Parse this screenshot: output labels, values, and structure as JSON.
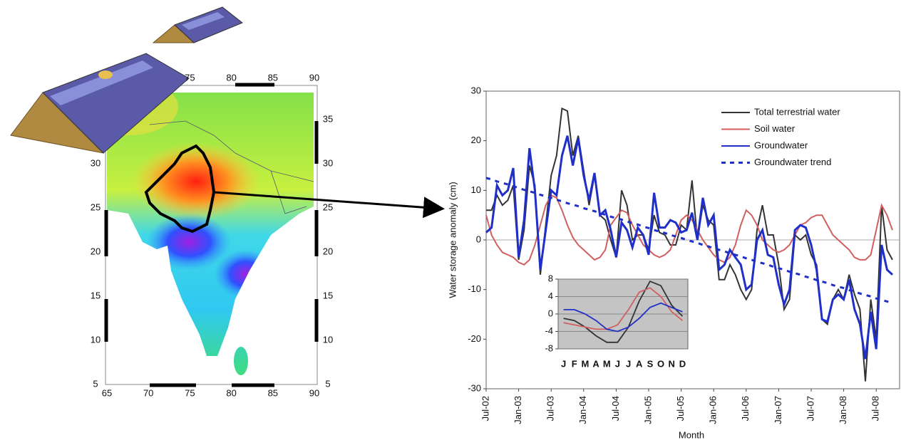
{
  "chart_data": [
    {
      "type": "line",
      "y_label": "Water storage anomaly (cm)",
      "x_label": "Month",
      "categories": [
        "Jul-02",
        null,
        null,
        null,
        null,
        null,
        "Jan-03",
        null,
        null,
        null,
        null,
        null,
        "Jul-03",
        null,
        null,
        null,
        null,
        null,
        "Jan-04",
        null,
        null,
        null,
        null,
        null,
        "Jul-04",
        null,
        null,
        null,
        null,
        null,
        "Jan-05",
        null,
        null,
        null,
        null,
        null,
        "Jul-05",
        null,
        null,
        null,
        null,
        null,
        "Jan-06",
        null,
        null,
        null,
        null,
        null,
        "Jul-06",
        null,
        null,
        null,
        null,
        null,
        "Jan-07",
        null,
        null,
        null,
        null,
        null,
        "Jul-07",
        null,
        null,
        null,
        null,
        null,
        "Jan-08",
        null,
        null,
        null,
        null,
        null,
        "Jul-08",
        null,
        null,
        null
      ],
      "ylim": [
        -30,
        30
      ],
      "yticks": [
        -30,
        -20,
        -10,
        0,
        10,
        20,
        30
      ],
      "legend": "top-right",
      "series": [
        {
          "name": "Total terrestrial water",
          "color": "#333333",
          "values": [
            6,
            6,
            9,
            7,
            8,
            11,
            -4,
            2,
            15,
            11,
            -7,
            3,
            13,
            17,
            26.5,
            26,
            17,
            21,
            14,
            7,
            13,
            5,
            4,
            0,
            -3.5,
            10,
            7,
            0,
            1,
            1,
            -2,
            5,
            1.5,
            1,
            -1,
            -1,
            3,
            2,
            12,
            0,
            7,
            4,
            3,
            -8,
            -8,
            -5,
            -7,
            -10,
            -12,
            -10,
            2,
            7,
            1,
            1,
            -5,
            -14,
            -12,
            1,
            0,
            1,
            -3,
            -5,
            -16,
            -17,
            -12,
            -10,
            -12,
            -7,
            -11,
            -14,
            -28.5,
            -12,
            -20,
            7,
            -2,
            -4
          ]
        },
        {
          "name": "Soil water",
          "color": "#d06060",
          "values": [
            5,
            1,
            -1,
            -2.5,
            -3,
            -3.5,
            -4.5,
            -5,
            -4,
            -1,
            3,
            7,
            9,
            8.5,
            6,
            3,
            0.5,
            -1,
            -2,
            -3,
            -4,
            -3.5,
            -2,
            3,
            4.5,
            6,
            5.5,
            3,
            1,
            -1,
            -2,
            -3,
            -3.5,
            -3,
            -2,
            1,
            4,
            5,
            4,
            2,
            0,
            -1.5,
            -3,
            -4,
            -4.5,
            -3.5,
            -1,
            3,
            6,
            5,
            3,
            0,
            -1,
            -2,
            -2.5,
            -2,
            -1,
            1,
            3,
            3.5,
            4.5,
            5,
            5,
            3,
            1,
            0,
            -1,
            -2,
            -3.5,
            -4,
            -4,
            -3,
            2,
            7,
            5,
            2
          ]
        },
        {
          "name": "Groundwater",
          "color": "#1f2fc8",
          "values": [
            1.5,
            2.5,
            11,
            9,
            10,
            14.5,
            -3.5,
            4,
            18.5,
            10,
            -6,
            2,
            10,
            9,
            17,
            21,
            15,
            20.5,
            13,
            8,
            13.5,
            5,
            6,
            2,
            -3.5,
            3.5,
            2,
            -1.5,
            2.5,
            1,
            -3,
            9.5,
            2.5,
            2.5,
            4,
            3.5,
            1.5,
            2,
            5.5,
            0,
            8.5,
            3,
            5,
            -6,
            -5,
            -2,
            -3.5,
            -5,
            -10,
            -9,
            0,
            2,
            -3,
            -3.5,
            -9,
            -13,
            -10,
            2,
            3,
            2.5,
            -1,
            -6,
            -16,
            -16.5,
            -12,
            -11,
            -12,
            -8,
            -14,
            -17,
            -24,
            -14.5,
            -22,
            -1,
            -6,
            -7
          ]
        },
        {
          "name": "Groundwater trend",
          "color": "#1f2fc8",
          "style": "dashed",
          "values": [
            12.5,
            12.2,
            11.8,
            11.5,
            11.2,
            10.8,
            10.5,
            10.1,
            9.8,
            9.5,
            9.1,
            8.8,
            8.5,
            8.1,
            7.8,
            7.4,
            7.1,
            6.8,
            6.4,
            6.1,
            5.8,
            5.4,
            5.1,
            4.7,
            4.4,
            4.1,
            3.7,
            3.4,
            3.1,
            2.7,
            2.4,
            2.0,
            1.7,
            1.4,
            1.0,
            0.7,
            0.4,
            0.0,
            -0.3,
            -0.6,
            -1.0,
            -1.3,
            -1.7,
            -2.0,
            -2.3,
            -2.7,
            -3.0,
            -3.3,
            -3.7,
            -4.0,
            -4.4,
            -4.7,
            -5.0,
            -5.4,
            -5.7,
            -6.0,
            -6.4,
            -6.7,
            -7.0,
            -7.4,
            -7.7,
            -8.1,
            -8.4,
            -8.7,
            -9.1,
            -9.4,
            -9.7,
            -10.1,
            -10.4,
            -10.8,
            -11.1,
            -11.4,
            -11.8,
            -12.1,
            -12.4,
            -12.8
          ]
        }
      ]
    },
    {
      "type": "line",
      "categories": [
        "J",
        "F",
        "M",
        "A",
        "M",
        "J",
        "J",
        "A",
        "S",
        "O",
        "N",
        "D"
      ],
      "ylim": [
        -8,
        8
      ],
      "yticks": [
        -8,
        -4,
        0,
        4,
        8
      ],
      "grid": true,
      "series": [
        {
          "color": "#333333",
          "values": [
            -1,
            -1.5,
            -3,
            -5,
            -6.5,
            -6.5,
            -3,
            3,
            7.5,
            6.5,
            2,
            -0.5
          ]
        },
        {
          "color": "#d06060",
          "values": [
            -2,
            -2.5,
            -3,
            -3.5,
            -3.5,
            -2.5,
            1,
            5,
            6,
            4,
            0.5,
            -1.5
          ]
        },
        {
          "color": "#1f2fc8",
          "values": [
            1,
            1,
            0,
            -1.5,
            -3.5,
            -4,
            -3,
            -1,
            1.5,
            2.5,
            1.5,
            0.5
          ]
        }
      ]
    }
  ],
  "map": {
    "xticks": [
      65,
      70,
      75,
      80,
      85,
      90
    ],
    "yticks": [
      5,
      10,
      15,
      20,
      25,
      30,
      35
    ]
  }
}
